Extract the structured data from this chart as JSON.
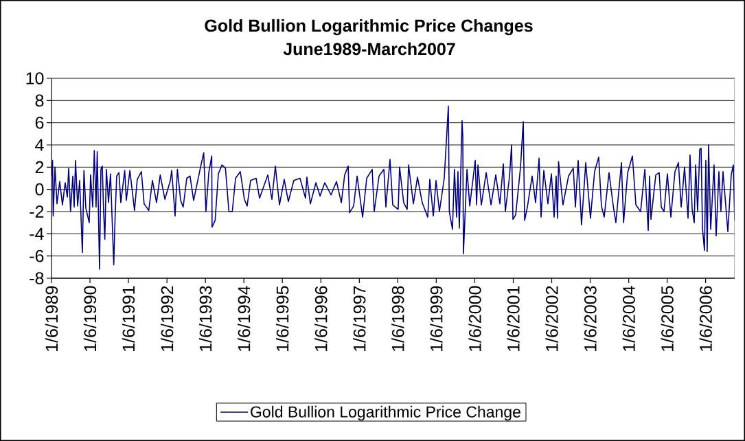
{
  "chart_data": {
    "type": "line",
    "title": "Gold Bullion Logarithmic Price Changes",
    "subtitle": "June1989-March2007",
    "x": [
      "1989-06-01",
      "1989-06-11",
      "1989-06-17",
      "1989-07-04",
      "1989-07-23",
      "1989-08-18",
      "1989-09-13",
      "1989-10-09",
      "1989-10-29",
      "1989-11-11",
      "1989-11-29",
      "1989-12-20",
      "1990-01-02",
      "1990-01-15",
      "1990-02-04",
      "1990-02-23",
      "1990-03-21",
      "1990-04-05",
      "1990-04-23",
      "1990-05-25",
      "1990-06-07",
      "1990-06-27",
      "1990-07-12",
      "1990-07-29",
      "1990-08-09",
      "1990-08-31",
      "1990-09-13",
      "1990-09-26",
      "1990-10-09",
      "1990-10-20",
      "1990-11-04",
      "1990-11-24",
      "1990-12-13",
      "1991-01-13",
      "1991-01-26",
      "1991-02-10",
      "1991-03-03",
      "1991-03-21",
      "1991-04-27",
      "1991-05-12",
      "1991-06-15",
      "1991-07-29",
      "1991-08-24",
      "1991-10-02",
      "1991-10-28",
      "1991-12-11",
      "1992-01-15",
      "1992-02-23",
      "1992-03-29",
      "1992-05-12",
      "1992-07-03",
      "1992-07-16",
      "1992-08-17",
      "1992-09-08",
      "1992-10-09",
      "1992-11-02",
      "1992-12-06",
      "1993-01-06",
      "1993-02-09",
      "1993-04-20",
      "1993-05-16",
      "1993-06-06",
      "1993-07-03",
      "1993-07-31",
      "1993-08-03",
      "1993-09-01",
      "1993-10-02",
      "1993-11-05",
      "1993-12-08",
      "1994-01-10",
      "1994-02-11",
      "1994-03-14",
      "1994-04-28",
      "1994-06-06",
      "1994-07-02",
      "1994-08-04",
      "1994-09-25",
      "1994-10-28",
      "1995-01-14",
      "1995-02-22",
      "1995-03-27",
      "1995-05-05",
      "1995-06-19",
      "1995-07-28",
      "1995-09-18",
      "1995-11-16",
      "1996-01-07",
      "1996-01-20",
      "1996-02-22",
      "1996-04-15",
      "1996-05-24",
      "1996-07-08",
      "1996-09-05",
      "1996-10-27",
      "1996-12-12",
      "1997-01-13",
      "1997-02-15",
      "1997-02-28",
      "1997-04-08",
      "1997-05-11",
      "1997-07-02",
      "1997-08-10",
      "1997-10-01",
      "1997-10-20",
      "1997-12-05",
      "1998-01-20",
      "1998-02-08",
      "1998-03-19",
      "1998-04-14",
      "1998-06-05",
      "1998-06-18",
      "1998-07-27",
      "1998-08-29",
      "1998-09-11",
      "1998-10-27",
      "1998-12-05",
      "1999-01-19",
      "1999-03-12",
      "1999-04-01",
      "1999-05-04",
      "1999-05-30",
      "1999-07-01",
      "1999-08-16",
      "1999-09-24",
      "1999-10-03",
      "1999-11-02",
      "1999-11-21",
      "1999-12-11",
      "1999-12-24",
      "2000-01-06",
      "2000-02-01",
      "2000-02-08",
      "2000-02-14",
      "2000-03-19",
      "2000-04-14",
      "2000-06-05",
      "2000-06-18",
      "2000-07-01",
      "2000-08-02",
      "2000-09-17",
      "2000-11-02",
      "2000-12-17",
      "2001-01-25",
      "2001-02-27",
      "2001-03-18",
      "2001-04-27",
      "2001-05-16",
      "2001-05-29",
      "2001-06-24",
      "2001-08-09",
      "2001-09-04",
      "2001-09-17",
      "2001-10-13",
      "2001-11-27",
      "2001-12-30",
      "2002-02-01",
      "2002-02-20",
      "2002-03-18",
      "2002-04-26",
      "2002-05-29",
      "2002-06-24",
      "2002-07-13",
      "2002-07-26",
      "2002-08-05",
      "2002-09-16",
      "2002-11-08",
      "2002-12-23",
      "2003-01-12",
      "2003-02-07",
      "2003-03-11",
      "2003-04-20",
      "2003-06-04",
      "2003-07-13",
      "2003-08-21",
      "2003-09-16",
      "2003-10-12",
      "2003-11-27",
      "2004-01-05",
      "2004-01-31",
      "2004-03-24",
      "2004-04-13",
      "2004-05-22",
      "2004-07-06",
      "2004-08-08",
      "2004-09-22",
      "2004-11-01",
      "2004-12-03",
      "2004-12-16",
      "2004-12-29",
      "2005-02-13",
      "2005-03-17",
      "2005-04-06",
      "2005-05-02",
      "2005-06-03",
      "2005-07-06",
      "2005-08-14",
      "2005-09-16",
      "2005-10-12",
      "2005-11-13",
      "2005-12-16",
      "2006-01-04",
      "2006-01-24",
      "2006-02-13",
      "2006-02-26",
      "2006-03-17",
      "2006-04-06",
      "2006-04-19",
      "2006-05-02",
      "2006-05-21",
      "2006-06-03",
      "2006-06-16",
      "2006-06-29",
      "2006-07-19",
      "2006-08-20",
      "2006-09-09",
      "2006-10-05",
      "2006-10-24",
      "2006-11-13",
      "2006-12-29",
      "2007-01-30",
      "2007-02-19",
      "2007-03-04"
    ],
    "series": [
      {
        "name": "Gold Bullion Logarithmic Price Change",
        "color": "#000080",
        "values": [
          1.2,
          2.6,
          -2.4,
          2.0,
          -1.3,
          0.7,
          -1.4,
          0.6,
          -0.7,
          1.9,
          -2.0,
          1.2,
          -1.6,
          2.6,
          -1.5,
          0.8,
          -5.7,
          1.7,
          -1.7,
          -3.0,
          1.3,
          -1.6,
          3.5,
          -1.6,
          3.4,
          -7.2,
          1.8,
          2.1,
          -2.1,
          -4.5,
          1.8,
          -1.2,
          1.4,
          -6.8,
          -2.4,
          1.2,
          1.5,
          -1.2,
          1.7,
          -1.0,
          1.7,
          -1.9,
          0.9,
          1.6,
          -1.3,
          -1.9,
          0.8,
          -1.2,
          1.3,
          -0.9,
          0.8,
          1.7,
          -2.4,
          1.8,
          -1.0,
          -1.6,
          1.0,
          1.2,
          -1.0,
          2.2,
          3.3,
          -2.0,
          1.5,
          3.0,
          -3.4,
          -2.8,
          1.4,
          2.2,
          1.9,
          -2.0,
          -2.0,
          1.0,
          1.6,
          -0.9,
          -1.5,
          0.8,
          1.0,
          -0.8,
          1.3,
          -0.9,
          2.1,
          -1.4,
          0.9,
          -1.1,
          0.8,
          1.0,
          -0.8,
          1.1,
          -1.3,
          0.6,
          -0.6,
          0.6,
          -0.5,
          0.7,
          -1.2,
          1.3,
          2.1,
          -2.1,
          -1.5,
          1.2,
          -2.5,
          1.0,
          1.8,
          -2.0,
          1.2,
          1.8,
          -1.6,
          2.7,
          -1.4,
          -1.8,
          2.0,
          -1.2,
          -1.8,
          2.2,
          -1.3,
          1.1,
          -1.2,
          -2.5,
          0.9,
          -2.4,
          0.8,
          -2.0,
          1.0,
          7.5,
          -2.0,
          -3.6,
          1.8,
          -2.5,
          1.6,
          -3.5,
          6.2,
          4.8,
          -5.8,
          1.8,
          -1.5,
          2.6,
          -1.4,
          2.2,
          -1.4,
          1.5,
          -1.4,
          1.3,
          -1.3,
          2.3,
          -2.0,
          1.2,
          4.0,
          -2.7,
          -2.3,
          2.0,
          6.1,
          -2.8,
          -1.6,
          1.2,
          -1.2,
          2.8,
          -2.5,
          1.7,
          -1.3,
          1.4,
          -2.5,
          1.2,
          -2.6,
          2.5,
          -1.4,
          1.2,
          1.9,
          -1.6,
          2.6,
          -3.2,
          2.4,
          -2.6,
          1.6,
          2.9,
          -1.5,
          -2.5,
          1.5,
          -1.4,
          -3.0,
          2.4,
          -3.0,
          1.5,
          3.0,
          -1.4,
          -2.0,
          1.8,
          -3.7,
          1.2,
          -2.7,
          1.3,
          1.5,
          -1.6,
          -2.0,
          1.4,
          -2.5,
          1.6,
          2.4,
          -1.6,
          2.0,
          -2.6,
          3.1,
          -1.8,
          -3.0,
          2.2,
          -2.0,
          3.6,
          3.7,
          -3.5,
          -5.5,
          2.6,
          -5.6,
          4.0,
          -3.6,
          2.2,
          -4.2,
          1.6,
          -2.0,
          1.6,
          -3.8,
          1.3,
          2.2,
          -2.8
        ]
      }
    ],
    "xlim": [
      "1989-06-01",
      "2007-03-04"
    ],
    "ylim": [
      -8,
      10
    ],
    "xticks": [
      {
        "value": "1989-06-01",
        "label": "1/6/1989"
      },
      {
        "value": "1990-06-01",
        "label": "1/6/1990"
      },
      {
        "value": "1991-06-01",
        "label": "1/6/1991"
      },
      {
        "value": "1992-06-01",
        "label": "1/6/1992"
      },
      {
        "value": "1993-06-01",
        "label": "1/6/1993"
      },
      {
        "value": "1994-06-01",
        "label": "1/6/1994"
      },
      {
        "value": "1995-06-01",
        "label": "1/6/1995"
      },
      {
        "value": "1996-06-01",
        "label": "1/6/1996"
      },
      {
        "value": "1997-06-01",
        "label": "1/6/1997"
      },
      {
        "value": "1998-06-01",
        "label": "1/6/1998"
      },
      {
        "value": "1999-06-01",
        "label": "1/6/1999"
      },
      {
        "value": "2000-06-01",
        "label": "1/6/2000"
      },
      {
        "value": "2001-06-01",
        "label": "1/6/2001"
      },
      {
        "value": "2002-06-01",
        "label": "1/6/2002"
      },
      {
        "value": "2003-06-01",
        "label": "1/6/2003"
      },
      {
        "value": "2004-06-01",
        "label": "1/6/2004"
      },
      {
        "value": "2005-06-01",
        "label": "1/6/2005"
      },
      {
        "value": "2006-06-01",
        "label": "1/6/2006"
      }
    ],
    "yticks": [
      -8,
      -6,
      -4,
      -2,
      0,
      2,
      4,
      6,
      8,
      10
    ],
    "grid": "y",
    "legend": "bottom"
  }
}
